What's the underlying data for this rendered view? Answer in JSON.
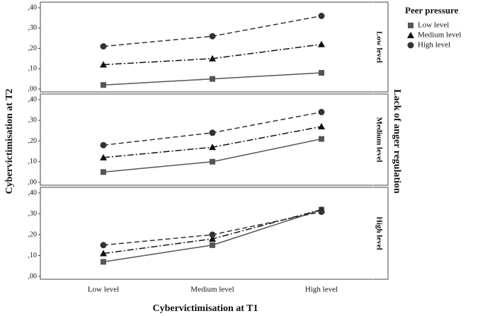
{
  "figure": {
    "y_label": "Cybervictimisation at T2",
    "x_label": "Cybervictimisation at T1",
    "facet_title": "Lack of anger regulation",
    "legend_title": "Peer pressure",
    "categories": [
      "Low level",
      "Medium level",
      "High level"
    ],
    "series": [
      {
        "name": "Low level",
        "color": "#555555",
        "marker": "square",
        "dash": "none"
      },
      {
        "name": "Medium level",
        "color": "#111111",
        "marker": "triangle",
        "dash": "9 3 2 3"
      },
      {
        "name": "High level",
        "color": "#333333",
        "marker": "circle",
        "dash": "7 4"
      }
    ]
  },
  "chart_data": [
    {
      "type": "line",
      "panel_label": "Low level",
      "ylim": [
        0,
        0.4
      ],
      "yticks": [
        {
          "value": 0,
          "label": ",00"
        },
        {
          "value": 0.1,
          "label": ",10"
        },
        {
          "value": 0.2,
          "label": ",20"
        },
        {
          "value": 0.3,
          "label": ",30"
        },
        {
          "value": 0.4,
          "label": ",40"
        }
      ],
      "series": [
        {
          "values": [
            0.02,
            0.05,
            0.08
          ]
        },
        {
          "values": [
            0.12,
            0.15,
            0.22
          ]
        },
        {
          "values": [
            0.21,
            0.26,
            0.36
          ]
        }
      ]
    },
    {
      "type": "line",
      "panel_label": "Medium level",
      "ylim": [
        0,
        0.4
      ],
      "yticks": [
        {
          "value": 0,
          "label": ",00"
        },
        {
          "value": 0.1,
          "label": ",10"
        },
        {
          "value": 0.2,
          "label": ",20"
        },
        {
          "value": 0.3,
          "label": ",30"
        },
        {
          "value": 0.4,
          "label": ",40"
        }
      ],
      "series": [
        {
          "values": [
            0.05,
            0.1,
            0.21
          ]
        },
        {
          "values": [
            0.12,
            0.17,
            0.27
          ]
        },
        {
          "values": [
            0.18,
            0.24,
            0.34
          ]
        }
      ]
    },
    {
      "type": "line",
      "panel_label": "High level",
      "ylim": [
        0,
        0.4
      ],
      "yticks": [
        {
          "value": 0,
          "label": ",00"
        },
        {
          "value": 0.1,
          "label": ",10"
        },
        {
          "value": 0.2,
          "label": ",20"
        },
        {
          "value": 0.3,
          "label": ",30"
        },
        {
          "value": 0.4,
          "label": ",40"
        }
      ],
      "series": [
        {
          "values": [
            0.07,
            0.15,
            0.32
          ]
        },
        {
          "values": [
            0.11,
            0.18,
            0.32
          ]
        },
        {
          "values": [
            0.15,
            0.2,
            0.31
          ]
        }
      ]
    }
  ]
}
